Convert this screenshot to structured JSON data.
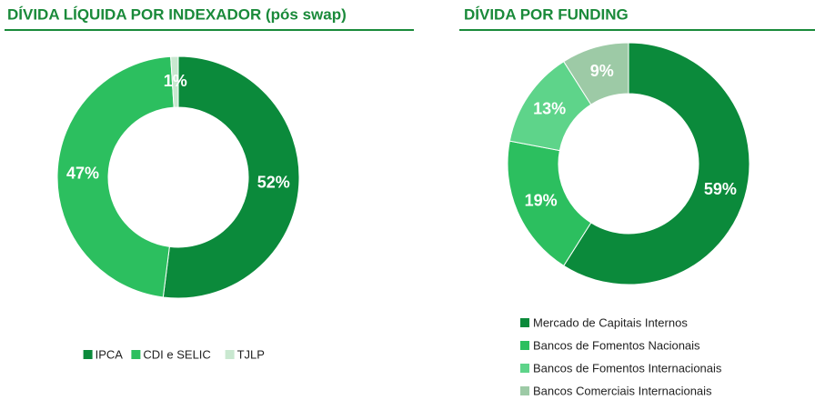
{
  "chart_data": [
    {
      "type": "pie",
      "title": "DÍVIDA LÍQUIDA POR INDEXADOR (pós swap)",
      "categories": [
        "IPCA",
        "CDI e SELIC",
        "TJLP"
      ],
      "values": [
        52,
        47,
        1
      ],
      "value_labels": [
        "52%",
        "47%",
        "1%"
      ],
      "colors": [
        "#0b8a3b",
        "#2cbf5f",
        "#c9e8d0"
      ],
      "legend": "bottom"
    },
    {
      "type": "pie",
      "title": "DÍVIDA POR FUNDING",
      "categories": [
        "Mercado de Capitais Internos",
        "Bancos de Fomentos Nacionais",
        "Bancos de Fomentos Internacionais",
        "Bancos Comerciais Internacionais"
      ],
      "values": [
        59,
        19,
        13,
        9
      ],
      "value_labels": [
        "59%",
        "19%",
        "13%",
        "9%"
      ],
      "colors": [
        "#0b8a3b",
        "#2cbf5f",
        "#5ed48a",
        "#9dcaa6"
      ],
      "legend": "bottom-list"
    }
  ]
}
